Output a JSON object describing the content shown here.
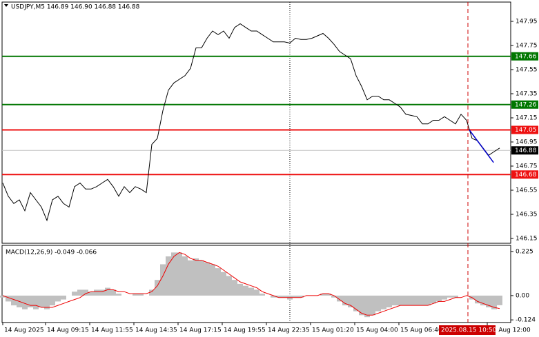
{
  "chart_data": [
    {
      "type": "line",
      "title": "USDJPY,M5  146.89 146.90 146.88 146.88",
      "color": "#000000",
      "xlim": [
        0,
        90
      ],
      "ylim": [
        146.11,
        148.11
      ],
      "xticks": [
        {
          "value": 0,
          "label": "14 Aug 2025"
        },
        {
          "value": 7.75,
          "label": "14 Aug 09:15"
        },
        {
          "value": 15.75,
          "label": "14 Aug 11:55"
        },
        {
          "value": 23.75,
          "label": "14 Aug 14:35"
        },
        {
          "value": 31.75,
          "label": "14 Aug 17:15"
        },
        {
          "value": 39.75,
          "label": "14 Aug 19:55"
        },
        {
          "value": 47.75,
          "label": "14 Aug 22:35"
        },
        {
          "value": 55.75,
          "label": "15 Aug 01:20"
        },
        {
          "value": 63.75,
          "label": "15 Aug 04:00"
        },
        {
          "value": 71.75,
          "label": "15 Aug 06:40"
        },
        {
          "value": 87.75,
          "label": "15 Aug 12:00"
        }
      ],
      "cursor": {
        "value": 84.25,
        "label": "2025.08.15 10:50",
        "color": "#cc0000"
      },
      "yticks": [
        147.95,
        147.75,
        147.55,
        147.35,
        147.15,
        146.95,
        146.75,
        146.55,
        146.35,
        146.15
      ],
      "values": [
        146.61,
        146.5,
        146.44,
        146.47,
        146.38,
        146.53,
        146.47,
        146.41,
        146.3,
        146.47,
        146.5,
        146.44,
        146.41,
        146.58,
        146.61,
        146.56,
        146.56,
        146.58,
        146.61,
        146.64,
        146.58,
        146.5,
        146.58,
        146.53,
        146.58,
        146.56,
        146.53,
        146.93,
        146.98,
        147.21,
        147.38,
        147.44,
        147.47,
        147.5,
        147.56,
        147.73,
        147.73,
        147.81,
        147.87,
        147.84,
        147.87,
        147.81,
        147.9,
        147.93,
        147.9,
        147.87,
        147.87,
        147.84,
        147.81,
        147.78,
        147.78,
        147.78,
        147.77,
        147.81,
        147.8,
        147.8,
        147.81,
        147.83,
        147.85,
        147.81,
        147.76,
        147.7,
        147.67,
        147.64,
        147.5,
        147.41,
        147.3,
        147.33,
        147.33,
        147.3,
        147.3,
        147.27,
        147.24,
        147.18,
        147.17,
        147.16,
        147.1,
        147.1,
        147.13,
        147.13,
        147.16,
        147.13,
        147.1,
        147.18,
        147.13,
        146.98,
        146.96,
        146.9,
        146.84,
        146.87,
        146.9
      ],
      "trendline": {
        "x": [
          84.5,
          88.9
        ],
        "values": [
          147.05,
          146.78
        ],
        "color": "#0000cc"
      },
      "levels": [
        {
          "value": 147.66,
          "color": "#007700"
        },
        {
          "value": 147.26,
          "color": "#007700"
        },
        {
          "value": 147.05,
          "color": "#ee1111"
        },
        {
          "value": 146.68,
          "color": "#ee1111"
        }
      ],
      "current": {
        "value": 146.88,
        "color": "#000000"
      }
    },
    {
      "type": "bar",
      "title": "MACD(12,26,9) -0.049 -0.066",
      "color": "#c0c0c0",
      "signal_color": "#ee0000",
      "xlim": [
        0,
        90
      ],
      "ylim": [
        -0.134,
        0.253
      ],
      "yticks": [
        0.225,
        {
          "value": 0,
          "label": "0.00"
        },
        -0.124
      ],
      "values": [
        -0.01,
        -0.03,
        -0.05,
        -0.06,
        -0.07,
        -0.06,
        -0.07,
        -0.06,
        -0.07,
        -0.05,
        -0.03,
        -0.02,
        0.0,
        0.02,
        0.03,
        0.03,
        0.02,
        0.03,
        0.03,
        0.04,
        0.03,
        0.01,
        0.0,
        0.0,
        0.01,
        0.01,
        0.0,
        0.03,
        0.08,
        0.16,
        0.2,
        0.22,
        0.22,
        0.2,
        0.18,
        0.19,
        0.18,
        0.17,
        0.16,
        0.14,
        0.12,
        0.1,
        0.08,
        0.06,
        0.05,
        0.04,
        0.03,
        0.01,
        0.0,
        -0.01,
        -0.01,
        -0.01,
        -0.02,
        -0.01,
        -0.01,
        0.0,
        0.0,
        0.0,
        0.01,
        0.01,
        -0.01,
        -0.03,
        -0.05,
        -0.06,
        -0.08,
        -0.1,
        -0.11,
        -0.1,
        -0.08,
        -0.07,
        -0.06,
        -0.05,
        -0.05,
        -0.05,
        -0.05,
        -0.05,
        -0.05,
        -0.05,
        -0.04,
        -0.03,
        -0.02,
        -0.01,
        -0.01,
        0.0,
        0.0,
        -0.02,
        -0.04,
        -0.05,
        -0.06,
        -0.07,
        -0.049
      ],
      "signal": [
        0.0,
        -0.01,
        -0.02,
        -0.03,
        -0.04,
        -0.05,
        -0.05,
        -0.06,
        -0.06,
        -0.06,
        -0.05,
        -0.04,
        -0.03,
        -0.02,
        -0.01,
        0.01,
        0.02,
        0.02,
        0.02,
        0.03,
        0.03,
        0.02,
        0.02,
        0.01,
        0.01,
        0.01,
        0.01,
        0.02,
        0.05,
        0.1,
        0.16,
        0.2,
        0.22,
        0.21,
        0.19,
        0.18,
        0.18,
        0.17,
        0.16,
        0.15,
        0.13,
        0.11,
        0.09,
        0.07,
        0.06,
        0.05,
        0.04,
        0.02,
        0.01,
        0.0,
        -0.01,
        -0.01,
        -0.01,
        -0.01,
        -0.01,
        0.0,
        0.0,
        0.0,
        0.01,
        0.01,
        0.0,
        -0.02,
        -0.04,
        -0.05,
        -0.07,
        -0.09,
        -0.1,
        -0.1,
        -0.09,
        -0.08,
        -0.07,
        -0.06,
        -0.05,
        -0.05,
        -0.05,
        -0.05,
        -0.05,
        -0.05,
        -0.04,
        -0.03,
        -0.03,
        -0.02,
        -0.01,
        -0.01,
        0.0,
        -0.01,
        -0.03,
        -0.04,
        -0.05,
        -0.06,
        -0.066
      ]
    }
  ]
}
